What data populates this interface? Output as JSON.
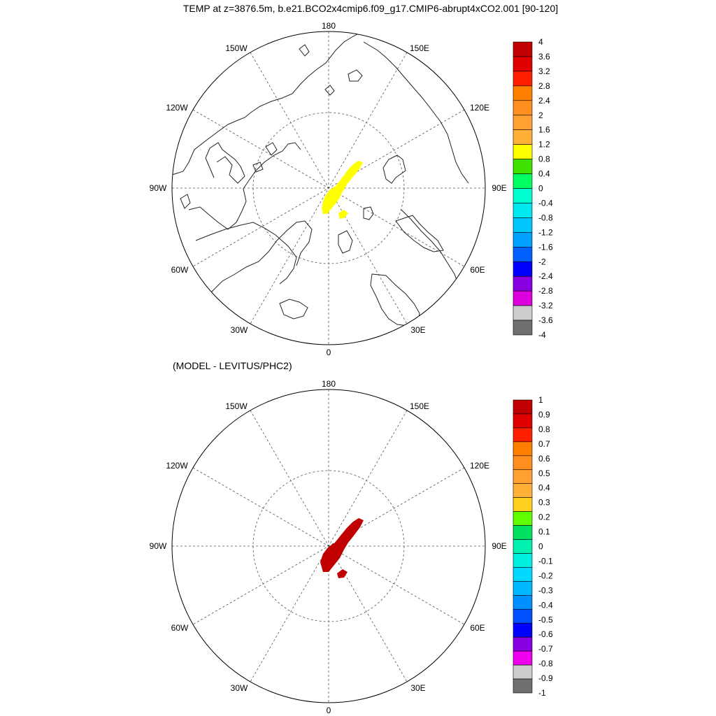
{
  "title": "TEMP at z=3876.5m, b.e21.BCO2x4cmip6.f09_g17.CMIP6-abrupt4xCO2.001 [90-120]",
  "maps": [
    {
      "id": "top",
      "subtitle": "",
      "lon_labels": {
        "n180": "180",
        "n150w": "150W",
        "n150e": "150E",
        "n120w": "120W",
        "n120e": "120E",
        "n90w": "90W",
        "n90e": "90E",
        "n60w": "60W",
        "n60e": "60E",
        "n30w": "30W",
        "n30e": "30E",
        "n0": "0"
      },
      "fill_color": "#ffff00",
      "colorbar": {
        "labels": [
          "4",
          "3.6",
          "3.2",
          "2.8",
          "2.4",
          "2",
          "1.6",
          "1.2",
          "0.8",
          "0.4",
          "0",
          "-0.4",
          "-0.8",
          "-1.2",
          "-1.6",
          "-2",
          "-2.4",
          "-2.8",
          "-3.2",
          "-3.6",
          "-4"
        ],
        "colors": [
          "#c00000",
          "#e00000",
          "#ff2000",
          "#ff8000",
          "#ff9020",
          "#ffa030",
          "#ffb038",
          "#ffff00",
          "#40e000",
          "#00ff60",
          "#00ffd0",
          "#00e8f0",
          "#00c8ff",
          "#00a0ff",
          "#0060ff",
          "#0000ff",
          "#8800e0",
          "#dd00dd",
          "#cccccc",
          "#707070"
        ]
      }
    },
    {
      "id": "bottom",
      "subtitle": "(MODEL - LEVITUS/PHC2)",
      "lon_labels": {
        "n180": "180",
        "n150w": "150W",
        "n150e": "150E",
        "n120w": "120W",
        "n120e": "120E",
        "n90w": "90W",
        "n90e": "90E",
        "n60w": "60W",
        "n60e": "60E",
        "n30w": "30W",
        "n30e": "30E",
        "n0": "0"
      },
      "fill_color": "#c00000",
      "colorbar": {
        "labels": [
          "1",
          "0.9",
          "0.8",
          "0.7",
          "0.6",
          "0.5",
          "0.4",
          "0.3",
          "0.2",
          "0.1",
          "0",
          "-0.1",
          "-0.2",
          "-0.3",
          "-0.4",
          "-0.5",
          "-0.6",
          "-0.7",
          "-0.8",
          "-0.9",
          "-1"
        ],
        "colors": [
          "#c00000",
          "#e00000",
          "#ff2000",
          "#ff8000",
          "#ff9020",
          "#ffa030",
          "#ffb038",
          "#ffd020",
          "#60ff00",
          "#00e060",
          "#00f0b0",
          "#00f0e0",
          "#00d8ff",
          "#00b8ff",
          "#0090ff",
          "#0050ff",
          "#0000ff",
          "#8800e0",
          "#ee00ee",
          "#cccccc",
          "#707070"
        ]
      }
    }
  ]
}
